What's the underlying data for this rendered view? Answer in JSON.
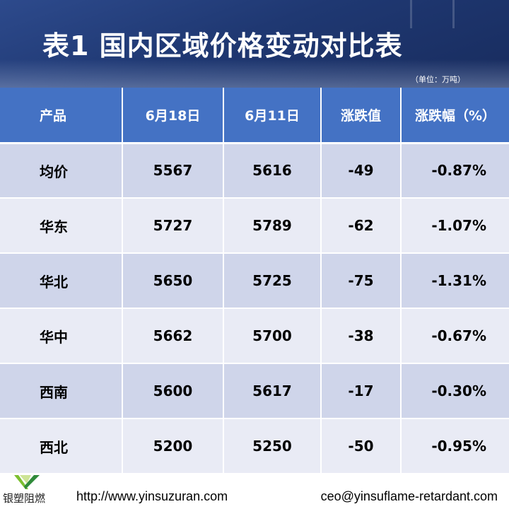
{
  "header": {
    "title": "表1  国内区域价格变动对比表",
    "unit": "（单位：万吨）"
  },
  "table": {
    "columns": [
      "产品",
      "6月18日",
      "6月11日",
      "涨跌值",
      "涨跌幅（%）"
    ],
    "rows": [
      [
        "均价",
        "5567",
        "5616",
        "-49",
        "-0.87%"
      ],
      [
        "华东",
        "5727",
        "5789",
        "-62",
        "-1.07%"
      ],
      [
        "华北",
        "5650",
        "5725",
        "-75",
        "-1.31%"
      ],
      [
        "华中",
        "5662",
        "5700",
        "-38",
        "-0.67%"
      ],
      [
        "西南",
        "5600",
        "5617",
        "-17",
        "-0.30%"
      ],
      [
        "西北",
        "5200",
        "5250",
        "-50",
        "-0.95%"
      ]
    ]
  },
  "footer": {
    "brand": "银塑阻燃",
    "url": "http://www.yinsuzuran.com",
    "email": "ceo@yinsuflame-retardant.com",
    "logo_icon": "green-v-check-logo"
  },
  "colors": {
    "banner": "#1f3872",
    "header_row": "#4472c4",
    "row_odd": "#cfd5ea",
    "row_even": "#e9ebf5"
  }
}
